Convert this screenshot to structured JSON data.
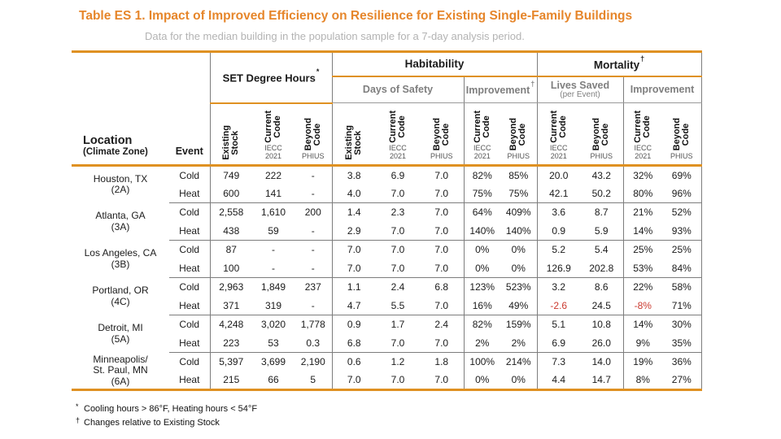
{
  "page": {
    "title": "Table ES 1. Impact of Improved Efficiency on Resilience for Existing Single-Family Buildings",
    "subtitle": "Data for the median building in the population sample for a 7-day analysis period."
  },
  "colors": {
    "accent_orange": "#E6862B",
    "border_orange": "#DF9122",
    "subtitle_gray": "#B3B3B3",
    "header_gray": "#7F7F7F",
    "line_gray": "#7D7D7D",
    "text_dark": "#1B1B1B",
    "negative_red": "#CB3A2F"
  },
  "table": {
    "header": {
      "location": "Location",
      "location_sub": "(Climate Zone)",
      "event": "Event",
      "set_group": "SET Degree Hours",
      "set_sup": "*",
      "habitability": "Habitability",
      "mortality": "Mortality",
      "dagger": "†",
      "days_of_safety": "Days of Safety",
      "improvement_hab": "Improvement",
      "lives_saved": "Lives Saved",
      "lives_saved_sub": "(per Event)",
      "improvement_mort": "Improvement"
    },
    "columns": {
      "existing": {
        "label": "Existing\nStock",
        "sub": ""
      },
      "current": {
        "label": "Current\nCode",
        "sub": "IECC\n2021"
      },
      "beyond": {
        "label": "Beyond\nCode",
        "sub": "PHIUS"
      }
    },
    "rows": [
      {
        "location": "Houston, TX",
        "zone": "(2A)",
        "events": [
          {
            "event": "Cold",
            "set": [
              "749",
              "222",
              "-"
            ],
            "days": [
              "3.8",
              "6.9",
              "7.0"
            ],
            "impr_hab": [
              "82%",
              "85%"
            ],
            "lives": [
              "20.0",
              "43.2"
            ],
            "impr_mort": [
              "32%",
              "69%"
            ]
          },
          {
            "event": "Heat",
            "set": [
              "600",
              "141",
              "-"
            ],
            "days": [
              "4.0",
              "7.0",
              "7.0"
            ],
            "impr_hab": [
              "75%",
              "75%"
            ],
            "lives": [
              "42.1",
              "50.2"
            ],
            "impr_mort": [
              "80%",
              "96%"
            ]
          }
        ]
      },
      {
        "location": "Atlanta, GA",
        "zone": "(3A)",
        "events": [
          {
            "event": "Cold",
            "set": [
              "2,558",
              "1,610",
              "200"
            ],
            "days": [
              "1.4",
              "2.3",
              "7.0"
            ],
            "impr_hab": [
              "64%",
              "409%"
            ],
            "lives": [
              "3.6",
              "8.7"
            ],
            "impr_mort": [
              "21%",
              "52%"
            ]
          },
          {
            "event": "Heat",
            "set": [
              "438",
              "59",
              "-"
            ],
            "days": [
              "2.9",
              "7.0",
              "7.0"
            ],
            "impr_hab": [
              "140%",
              "140%"
            ],
            "lives": [
              "0.9",
              "5.9"
            ],
            "impr_mort": [
              "14%",
              "93%"
            ]
          }
        ]
      },
      {
        "location": "Los Angeles, CA",
        "zone": "(3B)",
        "events": [
          {
            "event": "Cold",
            "set": [
              "87",
              "-",
              "-"
            ],
            "days": [
              "7.0",
              "7.0",
              "7.0"
            ],
            "impr_hab": [
              "0%",
              "0%"
            ],
            "lives": [
              "5.2",
              "5.4"
            ],
            "impr_mort": [
              "25%",
              "25%"
            ]
          },
          {
            "event": "Heat",
            "set": [
              "100",
              "-",
              "-"
            ],
            "days": [
              "7.0",
              "7.0",
              "7.0"
            ],
            "impr_hab": [
              "0%",
              "0%"
            ],
            "lives": [
              "126.9",
              "202.8"
            ],
            "impr_mort": [
              "53%",
              "84%"
            ]
          }
        ]
      },
      {
        "location": "Portland, OR",
        "zone": "(4C)",
        "events": [
          {
            "event": "Cold",
            "set": [
              "2,963",
              "1,849",
              "237"
            ],
            "days": [
              "1.1",
              "2.4",
              "6.8"
            ],
            "impr_hab": [
              "123%",
              "523%"
            ],
            "lives": [
              "3.2",
              "8.6"
            ],
            "impr_mort": [
              "22%",
              "58%"
            ]
          },
          {
            "event": "Heat",
            "set": [
              "371",
              "319",
              "-"
            ],
            "days": [
              "4.7",
              "5.5",
              "7.0"
            ],
            "impr_hab": [
              "16%",
              "49%"
            ],
            "lives": [
              "-2.6",
              "24.5"
            ],
            "impr_mort": [
              "-8%",
              "71%"
            ]
          }
        ]
      },
      {
        "location": "Detroit, MI",
        "zone": "(5A)",
        "events": [
          {
            "event": "Cold",
            "set": [
              "4,248",
              "3,020",
              "1,778"
            ],
            "days": [
              "0.9",
              "1.7",
              "2.4"
            ],
            "impr_hab": [
              "82%",
              "159%"
            ],
            "lives": [
              "5.1",
              "10.8"
            ],
            "impr_mort": [
              "14%",
              "30%"
            ]
          },
          {
            "event": "Heat",
            "set": [
              "223",
              "53",
              "0.3"
            ],
            "days": [
              "6.8",
              "7.0",
              "7.0"
            ],
            "impr_hab": [
              "2%",
              "2%"
            ],
            "lives": [
              "6.9",
              "26.0"
            ],
            "impr_mort": [
              "9%",
              "35%"
            ]
          }
        ]
      },
      {
        "location": "Minneapolis/\nSt. Paul, MN",
        "zone": "(6A)",
        "events": [
          {
            "event": "Cold",
            "set": [
              "5,397",
              "3,699",
              "2,190"
            ],
            "days": [
              "0.6",
              "1.2",
              "1.8"
            ],
            "impr_hab": [
              "100%",
              "214%"
            ],
            "lives": [
              "7.3",
              "14.0"
            ],
            "impr_mort": [
              "19%",
              "36%"
            ]
          },
          {
            "event": "Heat",
            "set": [
              "215",
              "66",
              "5"
            ],
            "days": [
              "7.0",
              "7.0",
              "7.0"
            ],
            "impr_hab": [
              "0%",
              "0%"
            ],
            "lives": [
              "4.4",
              "14.7"
            ],
            "impr_mort": [
              "8%",
              "27%"
            ]
          }
        ]
      }
    ]
  },
  "footnotes": [
    {
      "sym": "*",
      "text": "Cooling hours > 86°F, Heating hours < 54°F"
    },
    {
      "sym": "†",
      "text": "Changes relative to Existing Stock"
    }
  ]
}
